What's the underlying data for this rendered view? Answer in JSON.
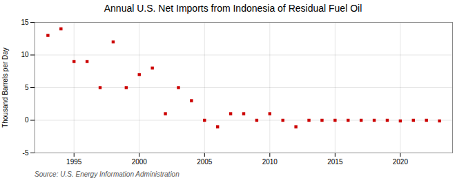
{
  "chart_data": {
    "type": "scatter",
    "title": "Annual U.S. Net Imports from Indonesia of Residual Fuel Oil",
    "ylabel": "Thousand Barrels per Day",
    "caption": "Source: U.S. Energy Information Administration",
    "x": [
      1993,
      1994,
      1995,
      1996,
      1997,
      1998,
      1999,
      2000,
      2001,
      2002,
      2003,
      2004,
      2005,
      2006,
      2007,
      2008,
      2009,
      2010,
      2011,
      2012,
      2013,
      2014,
      2015,
      2016,
      2017,
      2018,
      2019,
      2020,
      2021,
      2022,
      2023
    ],
    "values": [
      13,
      14,
      9,
      9,
      5,
      12,
      5,
      7,
      8,
      1,
      5,
      3,
      0,
      -1,
      1,
      1,
      0,
      1,
      0,
      -1,
      0,
      0,
      0,
      0,
      0,
      0,
      0,
      -0.1,
      0,
      0,
      -0.1
    ],
    "color": "#cc0000",
    "marker": "square",
    "xlim": [
      1992,
      2024
    ],
    "ylim": [
      -5,
      15
    ],
    "xticks": [
      1995,
      2000,
      2005,
      2010,
      2015,
      2020
    ],
    "yticks": [
      -5,
      0,
      5,
      10,
      15
    ],
    "grid": true
  }
}
